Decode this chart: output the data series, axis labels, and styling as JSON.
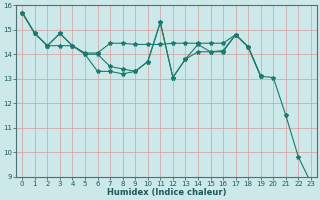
{
  "xlabel": "Humidex (Indice chaleur)",
  "bg_color": "#cce8e8",
  "grid_color": "#d4a0a0",
  "line_color": "#1a7a6e",
  "xlim": [
    -0.5,
    23.5
  ],
  "ylim": [
    9,
    16
  ],
  "yticks": [
    9,
    10,
    11,
    12,
    13,
    14,
    15,
    16
  ],
  "xticks": [
    0,
    1,
    2,
    3,
    4,
    5,
    6,
    7,
    8,
    9,
    10,
    11,
    12,
    13,
    14,
    15,
    16,
    17,
    18,
    19,
    20,
    21,
    22,
    23
  ],
  "series1_x": [
    0,
    1,
    2,
    3,
    4,
    5,
    6,
    7,
    8,
    9,
    10,
    11,
    12,
    13,
    14,
    15,
    16,
    17,
    18,
    19,
    20,
    21,
    22,
    23
  ],
  "series1_y": [
    15.7,
    14.85,
    14.35,
    14.85,
    14.35,
    14.0,
    14.0,
    13.5,
    13.4,
    13.3,
    13.7,
    15.3,
    13.05,
    13.8,
    14.4,
    14.1,
    14.15,
    14.8,
    14.3,
    13.1,
    13.05,
    11.5,
    9.8,
    8.75
  ],
  "series2_x": [
    0,
    1,
    2,
    3,
    4,
    5,
    6,
    7,
    8,
    9,
    10,
    11,
    12,
    13,
    14,
    15,
    16,
    17,
    18,
    19
  ],
  "series2_y": [
    15.7,
    14.85,
    14.35,
    14.35,
    14.35,
    14.05,
    14.05,
    14.45,
    14.45,
    14.4,
    14.4,
    14.4,
    14.45,
    14.45,
    14.45,
    14.45,
    14.45,
    14.8,
    14.3,
    13.1
  ],
  "series3_x": [
    0,
    1,
    2,
    3,
    4,
    5,
    6,
    7,
    8,
    9,
    10,
    11,
    12,
    13,
    14,
    15,
    16,
    17,
    18,
    19
  ],
  "series3_y": [
    15.7,
    14.85,
    14.35,
    14.85,
    14.35,
    14.0,
    13.3,
    13.3,
    13.2,
    13.3,
    13.7,
    15.3,
    13.05,
    13.8,
    14.1,
    14.1,
    14.1,
    14.8,
    14.3,
    13.1
  ],
  "xlabel_fontsize": 6,
  "tick_fontsize": 5,
  "linewidth": 0.8,
  "markersize": 3
}
